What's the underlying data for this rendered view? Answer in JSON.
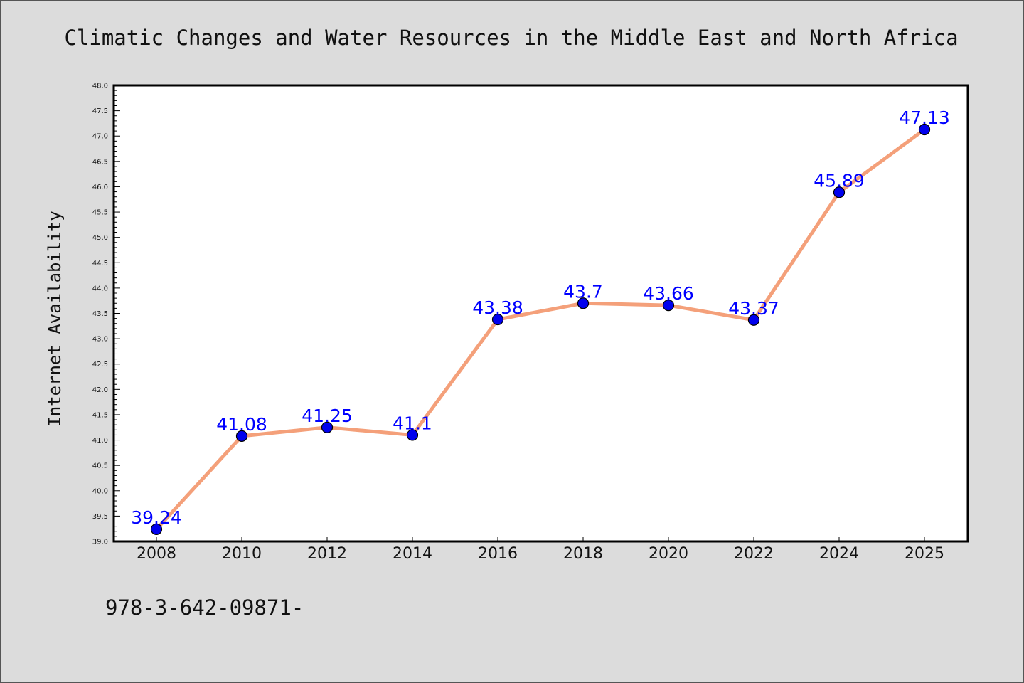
{
  "chart_data": {
    "type": "line",
    "title": "Climatic Changes and Water Resources in the Middle East and North Africa",
    "xlabel": "",
    "ylabel": "Internet Availability",
    "categories": [
      "2008",
      "2010",
      "2012",
      "2014",
      "2016",
      "2018",
      "2020",
      "2022",
      "2024",
      "2025"
    ],
    "series": [
      {
        "values": [
          39.24,
          41.08,
          41.25,
          41.1,
          43.38,
          43.7,
          43.66,
          43.37,
          45.89,
          47.13
        ],
        "labels": [
          "39.24",
          "41.08",
          "41.25",
          "41.1",
          "43.38",
          "43.7",
          "43.66",
          "43.37",
          "45.89",
          "47.13"
        ]
      }
    ],
    "ylim": [
      39.0,
      48.0
    ],
    "yticks": [
      "39.0",
      "39.5",
      "40.0",
      "40.5",
      "41.0",
      "41.5",
      "42.0",
      "42.5",
      "43.0",
      "43.5",
      "44.0",
      "44.5",
      "45.0",
      "45.5",
      "46.0",
      "46.5",
      "47.0",
      "47.5",
      "48.0"
    ],
    "grid": false,
    "colors": {
      "line": "#f4a07a",
      "marker": "#0000ee",
      "label": "#0000ff",
      "background": "#dcdcdc",
      "plot_area": "#ffffff"
    }
  },
  "footer": {
    "isbn": "978-3-642-09871-"
  }
}
